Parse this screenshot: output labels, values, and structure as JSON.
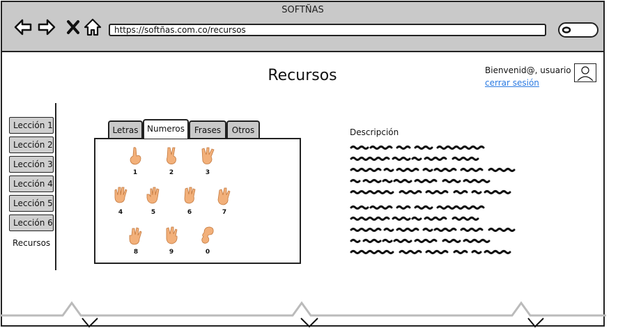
{
  "browser": {
    "title": "SOFTÑAS",
    "url": "https://softñas.com.co/recursos"
  },
  "page": {
    "title": "Recursos",
    "welcome": "Bienvenid@, usuario",
    "logout": "cerrar sesión"
  },
  "sidebar": {
    "items": [
      {
        "label": "Lección 1"
      },
      {
        "label": "Lección 2"
      },
      {
        "label": "Lección 3"
      },
      {
        "label": "Lección 4"
      },
      {
        "label": "Lección 5"
      },
      {
        "label": "Lección 6"
      },
      {
        "label": "Recursos"
      }
    ]
  },
  "tabs": [
    {
      "label": "Letras"
    },
    {
      "label": "Numeros"
    },
    {
      "label": "Frases"
    },
    {
      "label": "Otros"
    }
  ],
  "signs": [
    "1",
    "2",
    "3",
    "4",
    "5",
    "6",
    "7",
    "8",
    "9",
    "0"
  ],
  "description": {
    "label": "Descripción"
  }
}
